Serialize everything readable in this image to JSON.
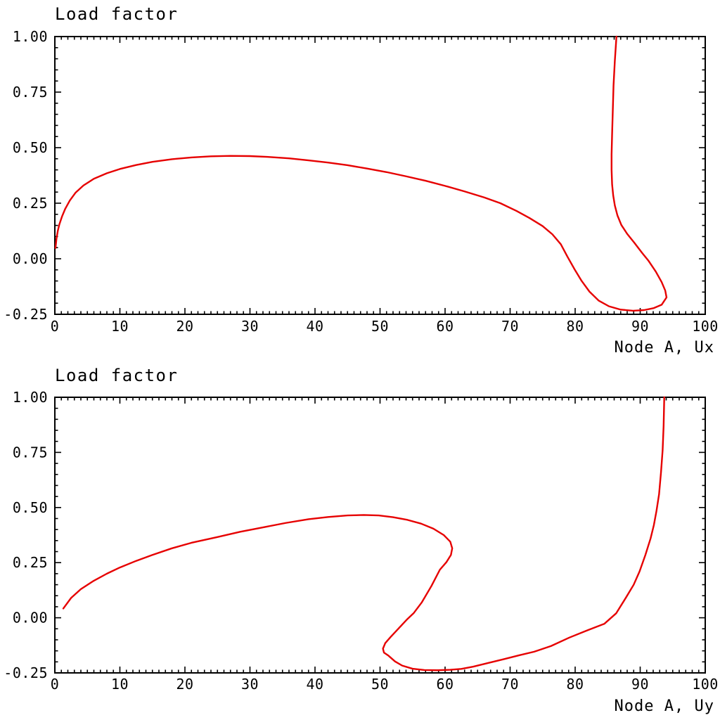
{
  "page": {
    "background": "#ffffff",
    "text_color": "#000000",
    "axis_color": "#000000"
  },
  "chart_data": [
    {
      "type": "line",
      "title": "Load factor",
      "xlabel": "Node A, Ux",
      "ylabel": "Load factor",
      "xlim": [
        0,
        100
      ],
      "ylim": [
        -0.25,
        1.0
      ],
      "x_major_ticks": [
        0,
        10,
        20,
        30,
        40,
        50,
        60,
        70,
        80,
        90,
        100
      ],
      "x_tick_labels": [
        "0",
        "10",
        "20",
        "30",
        "40",
        "50",
        "60",
        "70",
        "80",
        "90",
        "100"
      ],
      "x_minor_step": 1,
      "y_major_ticks": [
        -0.25,
        0,
        0.25,
        0.5,
        0.75,
        1
      ],
      "y_tick_labels": [
        "-0.25",
        "0.00",
        "0.25",
        "0.50",
        "0.75",
        "1.00"
      ],
      "y_minor_step": 0.05,
      "grid": false,
      "legend": null,
      "line_color": "#e60000",
      "points": [
        [
          0.1,
          0.048
        ],
        [
          0.25,
          0.09
        ],
        [
          0.45,
          0.125
        ],
        [
          0.7,
          0.155
        ],
        [
          1.1,
          0.19
        ],
        [
          1.6,
          0.225
        ],
        [
          2.3,
          0.262
        ],
        [
          3.2,
          0.298
        ],
        [
          4.4,
          0.33
        ],
        [
          6,
          0.36
        ],
        [
          8,
          0.385
        ],
        [
          10,
          0.404
        ],
        [
          12.5,
          0.422
        ],
        [
          15,
          0.436
        ],
        [
          18,
          0.448
        ],
        [
          21,
          0.456
        ],
        [
          24,
          0.461
        ],
        [
          27,
          0.463
        ],
        [
          30,
          0.462
        ],
        [
          33,
          0.458
        ],
        [
          36,
          0.452
        ],
        [
          39,
          0.443
        ],
        [
          42,
          0.433
        ],
        [
          45,
          0.421
        ],
        [
          48,
          0.406
        ],
        [
          51,
          0.39
        ],
        [
          54,
          0.371
        ],
        [
          57,
          0.351
        ],
        [
          60,
          0.328
        ],
        [
          63,
          0.303
        ],
        [
          66,
          0.276
        ],
        [
          68.5,
          0.25
        ],
        [
          71,
          0.215
        ],
        [
          73,
          0.183
        ],
        [
          75,
          0.147
        ],
        [
          76.5,
          0.11
        ],
        [
          77.8,
          0.065
        ],
        [
          78.8,
          0.01
        ],
        [
          79.9,
          -0.047
        ],
        [
          81,
          -0.1
        ],
        [
          82.2,
          -0.148
        ],
        [
          83.6,
          -0.188
        ],
        [
          85.2,
          -0.214
        ],
        [
          87,
          -0.229
        ],
        [
          88.9,
          -0.234
        ],
        [
          90.6,
          -0.231
        ],
        [
          92.1,
          -0.222
        ],
        [
          93.3,
          -0.207
        ],
        [
          94.05,
          -0.174
        ],
        [
          93.85,
          -0.143
        ],
        [
          93.3,
          -0.105
        ],
        [
          92.4,
          -0.058
        ],
        [
          91.3,
          -0.01
        ],
        [
          90.3,
          0.026
        ],
        [
          89.1,
          0.072
        ],
        [
          88,
          0.112
        ],
        [
          87.1,
          0.152
        ],
        [
          86.5,
          0.195
        ],
        [
          86.1,
          0.24
        ],
        [
          85.85,
          0.285
        ],
        [
          85.68,
          0.335
        ],
        [
          85.6,
          0.4
        ],
        [
          85.6,
          0.47
        ],
        [
          85.68,
          0.56
        ],
        [
          85.78,
          0.66
        ],
        [
          85.9,
          0.78
        ],
        [
          86.1,
          0.89
        ],
        [
          86.35,
          1.0
        ]
      ]
    },
    {
      "type": "line",
      "title": "Load factor",
      "xlabel": "Node A, Uy",
      "ylabel": "Load factor",
      "xlim": [
        0,
        100
      ],
      "ylim": [
        -0.25,
        1.0
      ],
      "x_major_ticks": [
        0,
        10,
        20,
        30,
        40,
        50,
        60,
        70,
        80,
        90,
        100
      ],
      "x_tick_labels": [
        "0",
        "10",
        "20",
        "30",
        "40",
        "50",
        "60",
        "70",
        "80",
        "90",
        "100"
      ],
      "x_minor_step": 1,
      "y_major_ticks": [
        -0.25,
        0,
        0.25,
        0.5,
        0.75,
        1
      ],
      "y_tick_labels": [
        "-0.25",
        "0.00",
        "0.25",
        "0.50",
        "0.75",
        "1.00"
      ],
      "y_minor_step": 0.05,
      "grid": false,
      "legend": null,
      "line_color": "#e60000",
      "points": [
        [
          1.3,
          0.042
        ],
        [
          2.5,
          0.09
        ],
        [
          4,
          0.13
        ],
        [
          6,
          0.168
        ],
        [
          8,
          0.2
        ],
        [
          10,
          0.228
        ],
        [
          12.5,
          0.258
        ],
        [
          15,
          0.285
        ],
        [
          18,
          0.315
        ],
        [
          21,
          0.34
        ],
        [
          25,
          0.366
        ],
        [
          28.5,
          0.39
        ],
        [
          32,
          0.41
        ],
        [
          35.5,
          0.43
        ],
        [
          39,
          0.447
        ],
        [
          42,
          0.457
        ],
        [
          45,
          0.464
        ],
        [
          47.5,
          0.466
        ],
        [
          49.8,
          0.464
        ],
        [
          52,
          0.456
        ],
        [
          54.2,
          0.444
        ],
        [
          56.3,
          0.427
        ],
        [
          58.2,
          0.404
        ],
        [
          59.8,
          0.375
        ],
        [
          60.8,
          0.345
        ],
        [
          61.1,
          0.315
        ],
        [
          60.9,
          0.285
        ],
        [
          60.2,
          0.252
        ],
        [
          59.2,
          0.218
        ],
        [
          57.9,
          0.144
        ],
        [
          56.4,
          0.069
        ],
        [
          55.2,
          0.022
        ],
        [
          54.2,
          -0.006
        ],
        [
          52.8,
          -0.05
        ],
        [
          51.6,
          -0.088
        ],
        [
          50.8,
          -0.115
        ],
        [
          50.45,
          -0.14
        ],
        [
          50.6,
          -0.158
        ],
        [
          51.3,
          -0.172
        ],
        [
          52.3,
          -0.198
        ],
        [
          53.4,
          -0.217
        ],
        [
          55,
          -0.231
        ],
        [
          56.8,
          -0.237
        ],
        [
          58.8,
          -0.238
        ],
        [
          60.8,
          -0.236
        ],
        [
          62.5,
          -0.232
        ],
        [
          64.3,
          -0.222
        ],
        [
          66.5,
          -0.206
        ],
        [
          69,
          -0.188
        ],
        [
          71.4,
          -0.17
        ],
        [
          73.7,
          -0.154
        ],
        [
          76.3,
          -0.128
        ],
        [
          79.1,
          -0.09
        ],
        [
          81.8,
          -0.058
        ],
        [
          84.5,
          -0.027
        ],
        [
          86.3,
          0.02
        ],
        [
          87.8,
          0.091
        ],
        [
          89,
          0.15
        ],
        [
          89.9,
          0.21
        ],
        [
          90.8,
          0.285
        ],
        [
          91.6,
          0.36
        ],
        [
          92.1,
          0.42
        ],
        [
          92.5,
          0.484
        ],
        [
          92.9,
          0.56
        ],
        [
          93.2,
          0.66
        ],
        [
          93.45,
          0.76
        ],
        [
          93.6,
          0.87
        ],
        [
          93.7,
          1.0
        ]
      ]
    }
  ]
}
